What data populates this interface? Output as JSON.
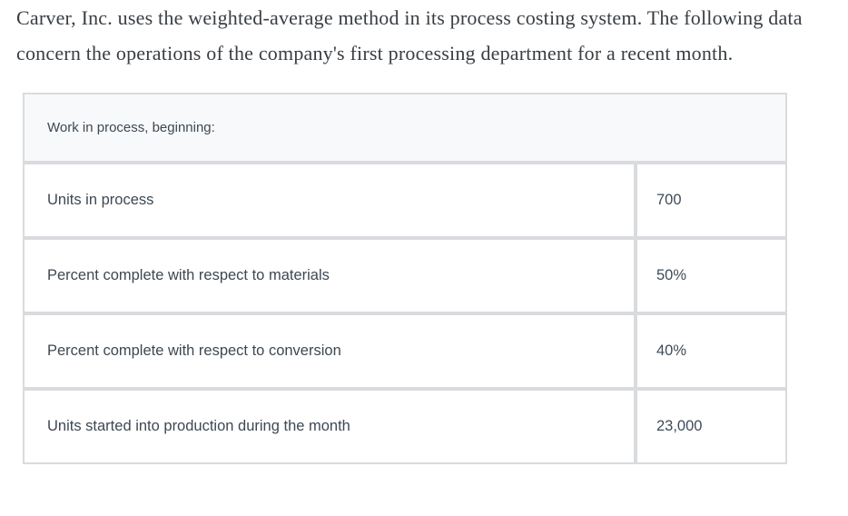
{
  "intro": {
    "paragraph": "Carver, Inc. uses the weighted-average method in its process costing system. The following data concern the operations of the company's first processing department for a recent month."
  },
  "table": {
    "header": "Work in process, beginning:",
    "rows": [
      {
        "label": "Units in process",
        "value": "700"
      },
      {
        "label": "Percent complete with respect to materials",
        "value": "50%"
      },
      {
        "label": "Percent complete with respect to conversion",
        "value": "40%"
      },
      {
        "label": "Units started into production during the month",
        "value": "23,000"
      }
    ]
  },
  "colors": {
    "border": "#d9dbde",
    "header_bg": "#f8f9fa",
    "cell_bg": "#ffffff",
    "text": "#3d4852"
  }
}
